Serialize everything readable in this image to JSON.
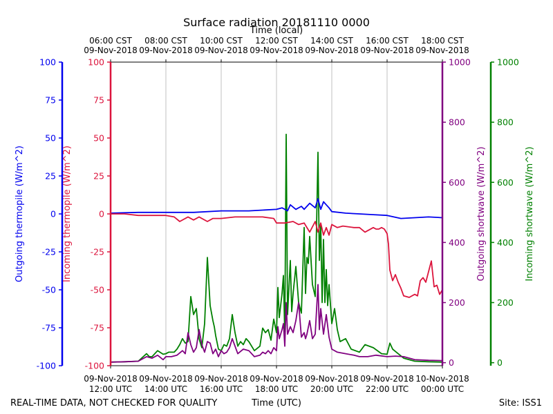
{
  "chart_data": {
    "type": "line",
    "title": "Surface radiation 20181110 0000",
    "top_xlabel": "Time (local)",
    "xlabel": "Time (UTC)",
    "footer_left": "REAL-TIME DATA, NOT CHECKED FOR QUALITY",
    "footer_right": "Site: ISS1",
    "x_unit": "hours since 09-Nov-2018 12:00 UTC",
    "xlim": [
      0,
      12
    ],
    "top_ticks": [
      {
        "x": 0,
        "time": "06:00 CST",
        "date": "09-Nov-2018"
      },
      {
        "x": 2,
        "time": "08:00 CST",
        "date": "09-Nov-2018"
      },
      {
        "x": 4,
        "time": "10:00 CST",
        "date": "09-Nov-2018"
      },
      {
        "x": 6,
        "time": "12:00 CST",
        "date": "09-Nov-2018"
      },
      {
        "x": 8,
        "time": "14:00 CST",
        "date": "09-Nov-2018"
      },
      {
        "x": 10,
        "time": "16:00 CST",
        "date": "09-Nov-2018"
      },
      {
        "x": 12,
        "time": "18:00 CST",
        "date": "09-Nov-2018"
      }
    ],
    "bottom_ticks": [
      {
        "x": 0,
        "date": "09-Nov-2018",
        "time": "12:00 UTC"
      },
      {
        "x": 2,
        "date": "09-Nov-2018",
        "time": "14:00 UTC"
      },
      {
        "x": 4,
        "date": "09-Nov-2018",
        "time": "16:00 UTC"
      },
      {
        "x": 6,
        "date": "09-Nov-2018",
        "time": "18:00 UTC"
      },
      {
        "x": 8,
        "date": "09-Nov-2018",
        "time": "20:00 UTC"
      },
      {
        "x": 10,
        "date": "09-Nov-2018",
        "time": "22:00 UTC"
      },
      {
        "x": 12,
        "date": "10-Nov-2018",
        "time": "00:00 UTC"
      }
    ],
    "axes": [
      {
        "id": "out_thermo",
        "label": "Outgoing thermopile (W/m^2)",
        "color": "#0000ee",
        "ylim": [
          -100,
          100
        ],
        "ticks": [
          -100,
          -75,
          -50,
          -25,
          0,
          25,
          50,
          75,
          100
        ]
      },
      {
        "id": "in_thermo",
        "label": "Incoming thermopile (W/m^2)",
        "color": "#dc143c",
        "ylim": [
          -100,
          100
        ],
        "ticks": [
          -100,
          -75,
          -50,
          -25,
          0,
          25,
          50,
          75,
          100
        ]
      },
      {
        "id": "out_sw",
        "label": "Outgoing shortwave (W/m^2)",
        "color": "#800080",
        "ylim": [
          -10,
          1000
        ],
        "ticks": [
          0,
          200,
          400,
          600,
          800,
          1000
        ]
      },
      {
        "id": "in_sw",
        "label": "Incoming shortwave (W/m^2)",
        "color": "#008000",
        "ylim": [
          -10,
          1000
        ],
        "ticks": [
          0,
          200,
          400,
          600,
          800,
          1000
        ]
      }
    ],
    "series": [
      {
        "name": "Incoming shortwave",
        "axis": "in_sw",
        "color": "#008000",
        "x": [
          0,
          0.5,
          1.0,
          1.3,
          1.4,
          1.5,
          1.7,
          1.9,
          2.0,
          2.1,
          2.3,
          2.4,
          2.5,
          2.6,
          2.7,
          2.8,
          2.9,
          3.0,
          3.1,
          3.2,
          3.3,
          3.4,
          3.5,
          3.6,
          3.7,
          3.75,
          3.8,
          3.9,
          4.0,
          4.1,
          4.2,
          4.3,
          4.4,
          4.5,
          4.6,
          4.7,
          4.8,
          4.9,
          5.0,
          5.2,
          5.4,
          5.5,
          5.6,
          5.7,
          5.8,
          5.9,
          6.0,
          6.05,
          6.1,
          6.2,
          6.25,
          6.3,
          6.35,
          6.4,
          6.45,
          6.5,
          6.55,
          6.6,
          6.7,
          6.8,
          6.9,
          7.0,
          7.05,
          7.1,
          7.15,
          7.2,
          7.3,
          7.4,
          7.5,
          7.55,
          7.6,
          7.65,
          7.7,
          7.75,
          7.8,
          7.85,
          7.9,
          8.0,
          8.1,
          8.2,
          8.3,
          8.5,
          8.7,
          9.0,
          9.2,
          9.5,
          9.8,
          10.0,
          10.1,
          10.2,
          10.4,
          10.6,
          11.0,
          11.5,
          12.0
        ],
        "values": [
          2,
          3,
          5,
          30,
          20,
          20,
          40,
          28,
          30,
          35,
          35,
          45,
          60,
          80,
          65,
          70,
          220,
          160,
          180,
          80,
          50,
          130,
          350,
          190,
          140,
          120,
          90,
          45,
          40,
          60,
          55,
          80,
          160,
          100,
          55,
          70,
          60,
          80,
          70,
          40,
          55,
          115,
          100,
          110,
          75,
          145,
          100,
          250,
          150,
          230,
          290,
          90,
          760,
          160,
          250,
          340,
          170,
          230,
          320,
          200,
          165,
          450,
          230,
          350,
          330,
          420,
          260,
          220,
          700,
          340,
          460,
          200,
          410,
          200,
          310,
          190,
          260,
          130,
          180,
          110,
          70,
          80,
          45,
          35,
          60,
          50,
          30,
          28,
          65,
          45,
          30,
          15,
          5,
          3,
          2
        ]
      },
      {
        "name": "Outgoing shortwave",
        "axis": "out_sw",
        "color": "#800080",
        "x": [
          0,
          0.5,
          1.0,
          1.3,
          1.5,
          1.7,
          1.9,
          2.0,
          2.2,
          2.4,
          2.6,
          2.7,
          2.8,
          2.9,
          3.0,
          3.1,
          3.2,
          3.3,
          3.4,
          3.5,
          3.6,
          3.7,
          3.8,
          3.9,
          4.0,
          4.1,
          4.2,
          4.3,
          4.4,
          4.6,
          4.8,
          5.0,
          5.2,
          5.4,
          5.5,
          5.6,
          5.7,
          5.8,
          5.9,
          6.0,
          6.05,
          6.1,
          6.2,
          6.25,
          6.3,
          6.35,
          6.4,
          6.5,
          6.6,
          6.7,
          6.8,
          6.9,
          7.0,
          7.05,
          7.1,
          7.2,
          7.3,
          7.4,
          7.5,
          7.55,
          7.6,
          7.7,
          7.8,
          7.9,
          8.0,
          8.2,
          8.5,
          8.8,
          9.0,
          9.3,
          9.6,
          10.0,
          10.3,
          10.6,
          11.0,
          11.5,
          12.0
        ],
        "values": [
          2,
          3,
          5,
          20,
          15,
          25,
          10,
          20,
          20,
          25,
          40,
          30,
          100,
          60,
          35,
          50,
          110,
          60,
          35,
          70,
          65,
          30,
          45,
          20,
          40,
          30,
          35,
          50,
          80,
          30,
          45,
          40,
          20,
          25,
          35,
          30,
          40,
          30,
          50,
          40,
          120,
          80,
          110,
          130,
          55,
          200,
          95,
          120,
          100,
          140,
          200,
          85,
          100,
          80,
          95,
          140,
          80,
          95,
          260,
          110,
          180,
          95,
          160,
          85,
          45,
          35,
          30,
          25,
          20,
          20,
          25,
          20,
          22,
          20,
          10,
          8,
          7
        ]
      },
      {
        "name": "Outgoing thermopile",
        "axis": "out_thermo",
        "color": "#0000ee",
        "x": [
          0,
          1,
          2,
          3,
          4,
          5,
          5.5,
          6,
          6.2,
          6.4,
          6.5,
          6.7,
          6.9,
          7.0,
          7.2,
          7.4,
          7.5,
          7.6,
          7.7,
          7.8,
          7.9,
          8.0,
          8.5,
          9.0,
          9.5,
          10.0,
          10.5,
          11.0,
          11.5,
          12.0
        ],
        "values": [
          0.5,
          1.0,
          1.0,
          1.0,
          2.0,
          2.0,
          2.5,
          3.0,
          4.0,
          2.0,
          6.0,
          3.0,
          5.0,
          3.0,
          7.0,
          4.0,
          10.0,
          3.0,
          8.0,
          6.0,
          4.0,
          1.5,
          0.5,
          0.0,
          -0.5,
          -1.0,
          -3.0,
          -2.5,
          -2.0,
          -2.5
        ]
      },
      {
        "name": "Incoming thermopile",
        "axis": "in_thermo",
        "color": "#dc143c",
        "x": [
          0,
          0.5,
          1.0,
          1.5,
          2.0,
          2.3,
          2.5,
          2.8,
          3.0,
          3.2,
          3.5,
          3.7,
          4.0,
          4.5,
          5.0,
          5.5,
          5.9,
          6.0,
          6.3,
          6.6,
          6.8,
          7.0,
          7.2,
          7.4,
          7.5,
          7.6,
          7.7,
          7.8,
          7.9,
          8.0,
          8.2,
          8.4,
          8.8,
          9.0,
          9.2,
          9.5,
          9.6,
          9.7,
          9.8,
          9.9,
          10.0,
          10.05,
          10.1,
          10.2,
          10.3,
          10.4,
          10.5,
          10.6,
          10.8,
          11.0,
          11.1,
          11.2,
          11.3,
          11.4,
          11.6,
          11.7,
          11.8,
          11.9,
          12.0
        ],
        "values": [
          0,
          0,
          -1,
          -1,
          -1,
          -2,
          -5,
          -2,
          -4,
          -2,
          -5,
          -3,
          -3,
          -2,
          -2,
          -2,
          -3,
          -6,
          -6,
          -5,
          -7,
          -6,
          -12,
          -5,
          -12,
          -6,
          -14,
          -9,
          -14,
          -7,
          -9,
          -8,
          -9,
          -9,
          -12,
          -9,
          -10,
          -10,
          -9,
          -10,
          -13,
          -20,
          -37,
          -44,
          -40,
          -45,
          -49,
          -54,
          -55,
          -53,
          -54,
          -44,
          -42,
          -45,
          -31,
          -48,
          -47,
          -53,
          -50
        ]
      }
    ]
  }
}
